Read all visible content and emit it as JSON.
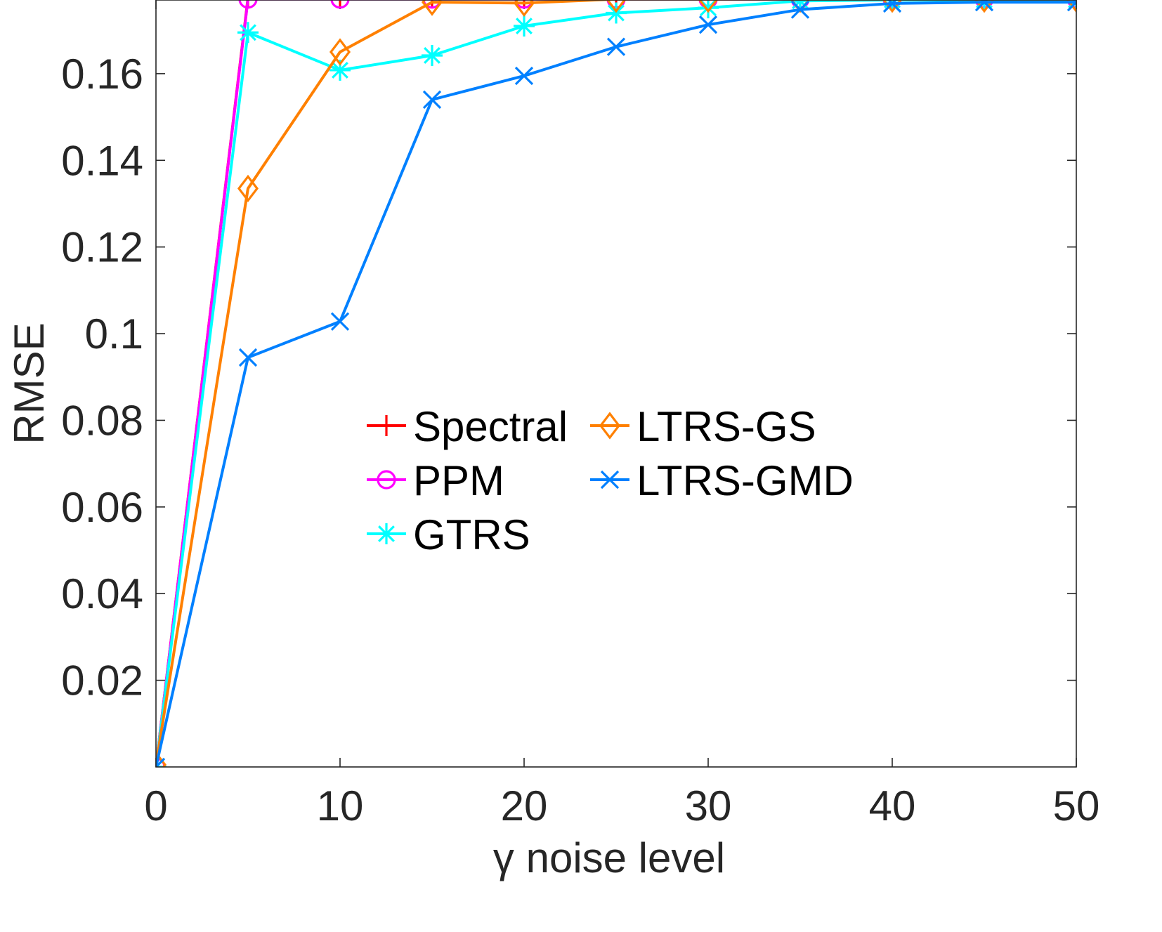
{
  "chart_data": {
    "type": "line",
    "xlabel": "γ noise level",
    "ylabel": "RMSE",
    "xlim": [
      0,
      50
    ],
    "ylim": [
      0,
      0.177
    ],
    "xticks": [
      "0",
      "10",
      "20",
      "30",
      "40",
      "50"
    ],
    "yticks": [
      "0.02",
      "0.04",
      "0.06",
      "0.08",
      "0.1",
      "0.12",
      "0.14",
      "0.16"
    ],
    "grid": false,
    "legend_position": "center",
    "x": [
      0,
      5,
      10,
      15,
      20,
      25,
      30,
      35,
      40,
      45,
      50
    ],
    "series": [
      {
        "name": "Spectral",
        "color": "#ff0000",
        "marker": "plus",
        "values": [
          0.0,
          0.1775,
          0.1775,
          0.1775,
          0.1775,
          0.1775,
          0.1775,
          0.1775,
          0.1775,
          0.1775,
          0.1775
        ]
      },
      {
        "name": "PPM",
        "color": "#ff00ff",
        "marker": "circle",
        "values": [
          0.0,
          0.1772,
          0.1772,
          0.1772,
          0.1772,
          0.1772,
          0.1772,
          0.1772,
          0.1772,
          0.1772,
          0.1772
        ]
      },
      {
        "name": "GTRS",
        "color": "#00ffff",
        "marker": "star",
        "values": [
          0.0,
          0.1695,
          0.1608,
          0.1642,
          0.171,
          0.174,
          0.1752,
          0.1768,
          0.177,
          0.177,
          0.177
        ]
      },
      {
        "name": "LTRS-GS",
        "color": "#ff8000",
        "marker": "diamond",
        "values": [
          0.0005,
          0.1335,
          0.165,
          0.1765,
          0.1763,
          0.1772,
          0.1772,
          0.1772,
          0.1772,
          0.1772,
          0.1772
        ]
      },
      {
        "name": "LTRS-GMD",
        "color": "#0080ff",
        "marker": "x",
        "values": [
          0.0,
          0.0945,
          0.1028,
          0.154,
          0.1595,
          0.1662,
          0.1713,
          0.1748,
          0.1762,
          0.1765,
          0.1765
        ]
      }
    ]
  }
}
